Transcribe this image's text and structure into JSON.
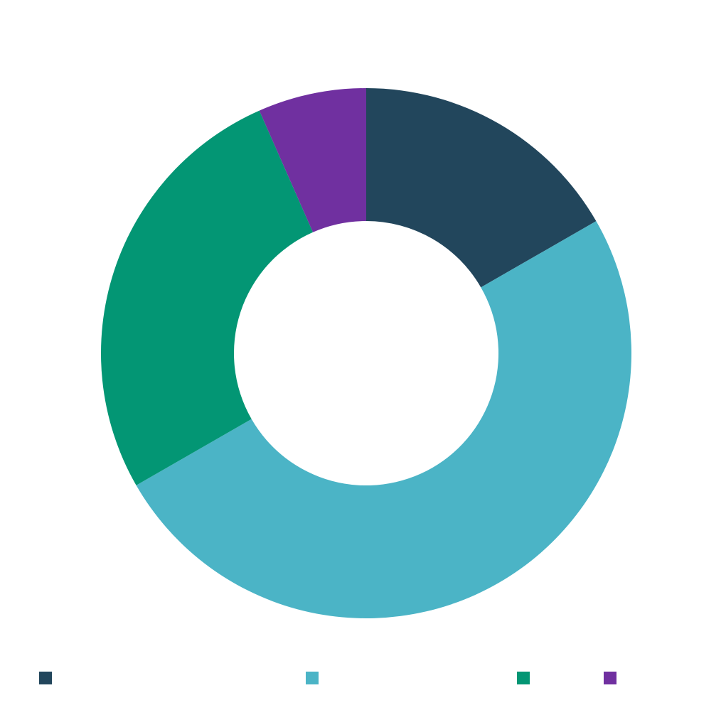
{
  "chart_data": {
    "type": "pie",
    "categories": [
      null,
      null,
      null,
      null
    ],
    "values": [
      16.7,
      50,
      26.7,
      6.6
    ],
    "colors": [
      "#22465c",
      "#4bb4c6",
      "#039674",
      "#7030a0"
    ],
    "legend": "bottom"
  }
}
